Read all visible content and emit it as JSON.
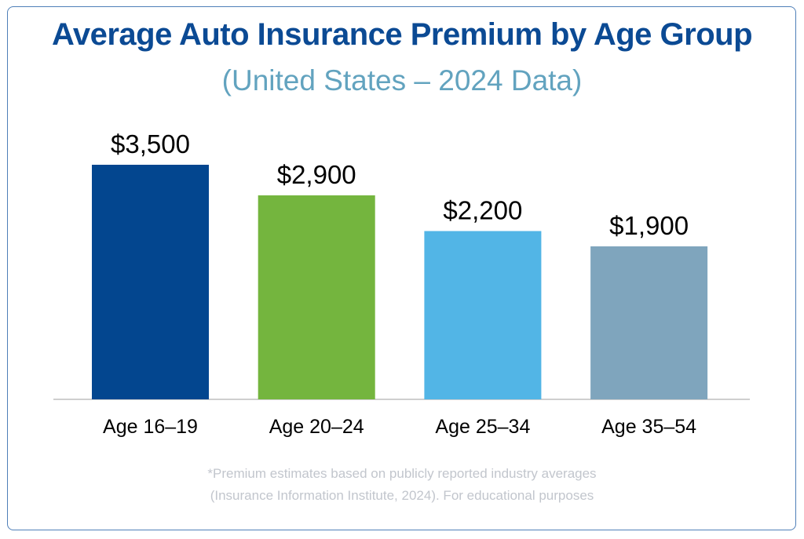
{
  "chart_data": {
    "type": "bar",
    "title": "Average Auto Insurance Premium by Age Group",
    "subtitle": "(United States – 2024 Data)",
    "categories": [
      "Age 16–19",
      "Age 20–24",
      "Age 25–34",
      "Age 35–54"
    ],
    "values": [
      3500,
      2900,
      2200,
      1900
    ],
    "data_labels": [
      "$3,500",
      "$2,900",
      "$2,200",
      "$1,900"
    ],
    "colors": [
      "#03468f",
      "#74b53e",
      "#52b5e6",
      "#7fa5bd"
    ],
    "xlabel": "",
    "ylabel": "",
    "grid": false,
    "legend": "none"
  },
  "footnote": {
    "line1": "*Premium estimates based on publicly reported industry averages",
    "line2": "(Insurance Information Institute, 2024). For educational purposes"
  }
}
